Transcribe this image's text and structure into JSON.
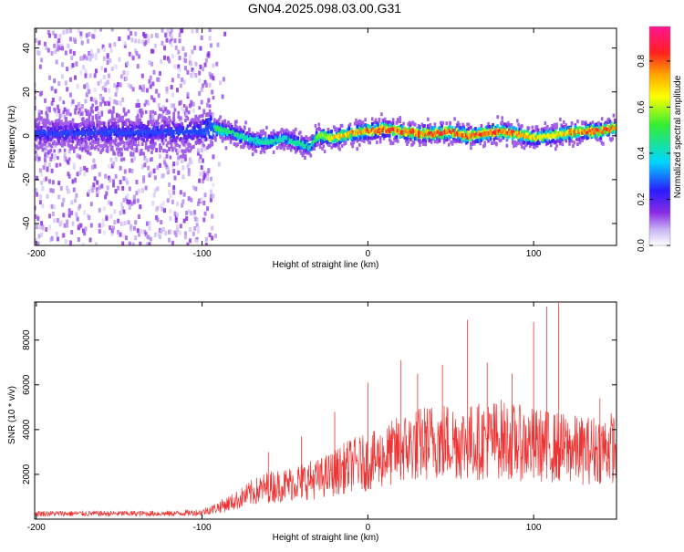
{
  "title": "GN04.2025.098.03.00.G31",
  "colors": {
    "series": "#ee3333",
    "background": "#ffffff",
    "axis": "#000000"
  },
  "colorbar": {
    "label": "Normalized spectral amplitude",
    "ticks": [
      "0.0",
      "0.2",
      "0.4",
      "0.6",
      "0.8"
    ],
    "range": [
      0.0,
      0.95
    ],
    "colormap": "rainbow (white-purple-blue-cyan-green-yellow-orange-red-magenta)"
  },
  "chart_data": [
    {
      "type": "heatmap",
      "xlabel": "Height of straight line (km)",
      "ylabel": "Frequency (Hz)",
      "xlim": [
        -201,
        150
      ],
      "ylim": [
        -50,
        49
      ],
      "xticks": [
        "-200",
        "-100",
        "0",
        "100"
      ],
      "yticks": [
        "40",
        "20",
        "0",
        "-20",
        "-40"
      ],
      "grid": false,
      "center_track": {
        "x": [
          -200,
          -100,
          -95,
          -90,
          -80,
          -70,
          -60,
          -50,
          -40,
          -35,
          -30,
          -20,
          -10,
          0,
          10,
          20,
          30,
          40,
          50,
          60,
          70,
          80,
          90,
          100,
          110,
          120,
          130,
          140,
          150
        ],
        "freq_hz": [
          1,
          2,
          4,
          3,
          1,
          -2,
          -3,
          -1,
          -4,
          -5,
          0,
          -1,
          1,
          2,
          3,
          2,
          1,
          1,
          2,
          0,
          1,
          2,
          1,
          -1,
          0,
          1,
          2,
          2,
          4
        ],
        "peak_amplitude": [
          0.25,
          0.3,
          0.5,
          0.55,
          0.5,
          0.45,
          0.5,
          0.45,
          0.5,
          0.45,
          0.6,
          0.75,
          0.8,
          0.85,
          0.9,
          0.85,
          0.85,
          0.9,
          0.9,
          0.85,
          0.9,
          0.85,
          0.85,
          0.75,
          0.7,
          0.8,
          0.85,
          0.9,
          0.8
        ]
      }
    },
    {
      "type": "line",
      "xlabel": "Height of straight line (km)",
      "ylabel": "SNR (10 * v/v)",
      "xlim": [
        -201,
        150
      ],
      "ylim": [
        0,
        9700
      ],
      "xticks": [
        "-200",
        "-100",
        "0",
        "100"
      ],
      "yticks": [
        "8000",
        "6000",
        "4000",
        "2000"
      ],
      "grid": false,
      "series": [
        {
          "x": [
            -200,
            -180,
            -160,
            -140,
            -120,
            -100,
            -90,
            -80,
            -70,
            -60,
            -50,
            -40,
            -30,
            -20,
            -10,
            0,
            10,
            20,
            30,
            40,
            50,
            60,
            70,
            80,
            90,
            100,
            110,
            120,
            130,
            140,
            150
          ],
          "values": [
            250,
            250,
            250,
            250,
            250,
            300,
            600,
            900,
            1300,
            1600,
            1700,
            1900,
            2000,
            2300,
            2700,
            2800,
            3100,
            3500,
            3700,
            3900,
            3900,
            3800,
            3900,
            4000,
            3800,
            3700,
            3600,
            3500,
            3400,
            3500,
            3600
          ],
          "peaks": {
            "x": [
              -60,
              -40,
              -20,
              0,
              20,
              30,
              45,
              60,
              72,
              87,
              100,
              108,
              115,
              140
            ],
            "values": [
              3000,
              3700,
              4800,
              6100,
              7100,
              6500,
              6900,
              8900,
              7000,
              6500,
              8800,
              9500,
              9800,
              5400
            ]
          }
        }
      ]
    }
  ]
}
